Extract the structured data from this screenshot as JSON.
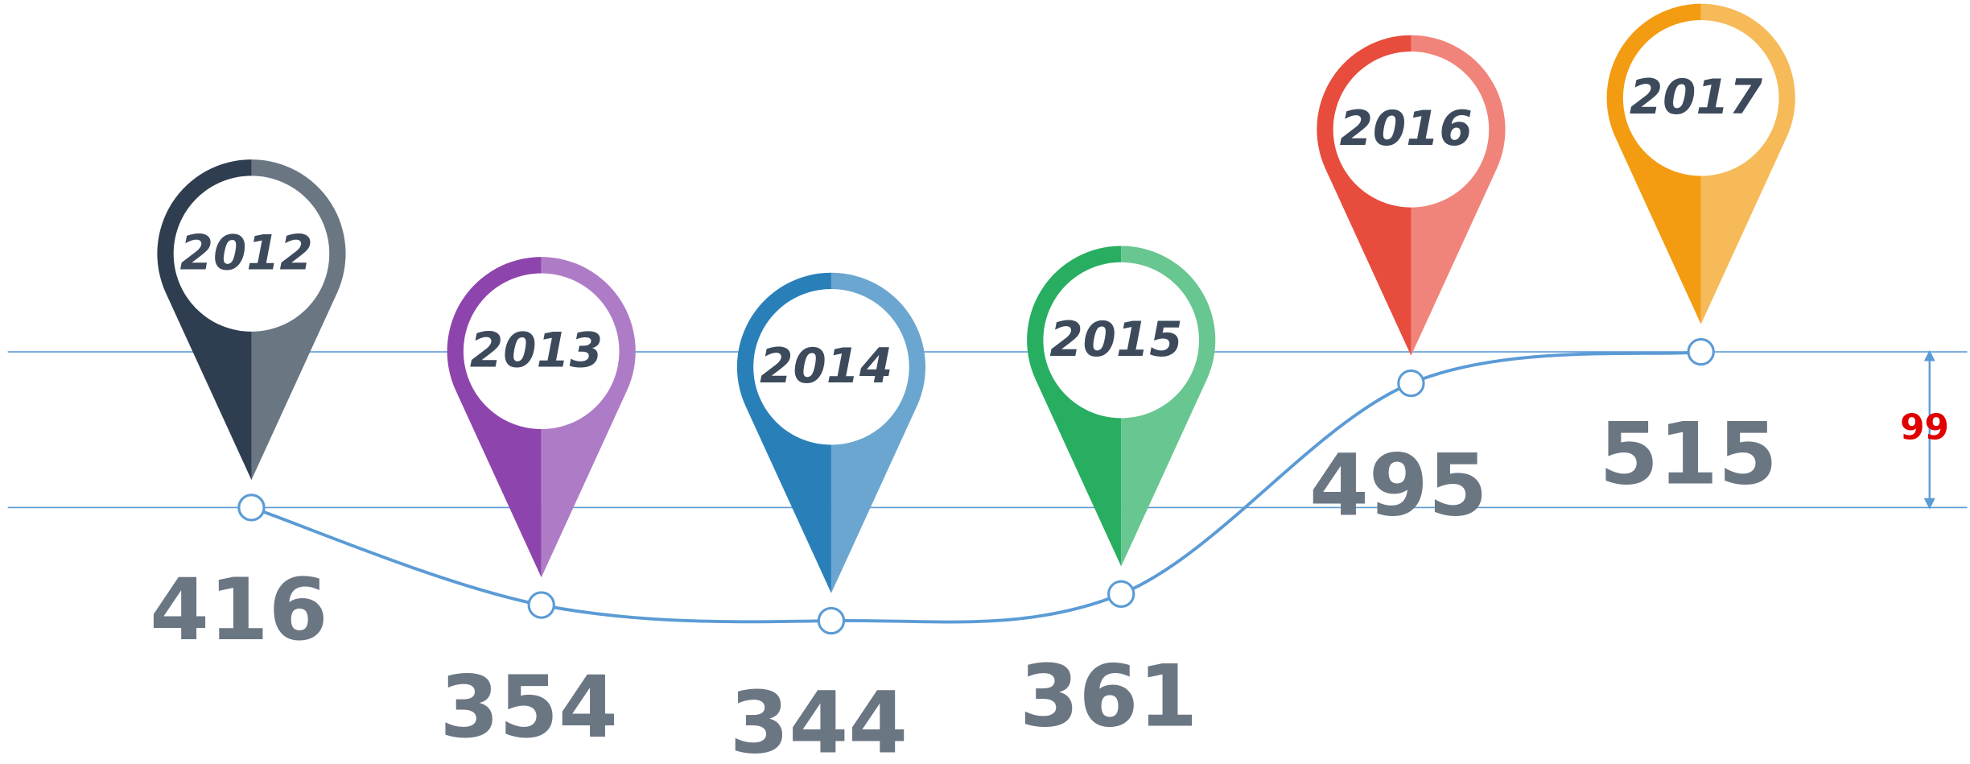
{
  "chart_data": {
    "type": "pin-line",
    "categories": [
      "2012",
      "2013",
      "2014",
      "2015",
      "2016",
      "2017"
    ],
    "values": [
      416,
      354,
      344,
      361,
      495,
      515
    ],
    "colors": [
      [
        "#2e3e50",
        "#6b7683"
      ],
      [
        "#8e44ad",
        "#ae7cc6"
      ],
      [
        "#2980b9",
        "#6aa6d0"
      ],
      [
        "#27ae60",
        "#68c690"
      ],
      [
        "#e74c3c",
        "#f0847a"
      ],
      [
        "#f39c12",
        "#f6ba59"
      ]
    ],
    "line_color": "#5b9bd5",
    "annotation": "99"
  }
}
